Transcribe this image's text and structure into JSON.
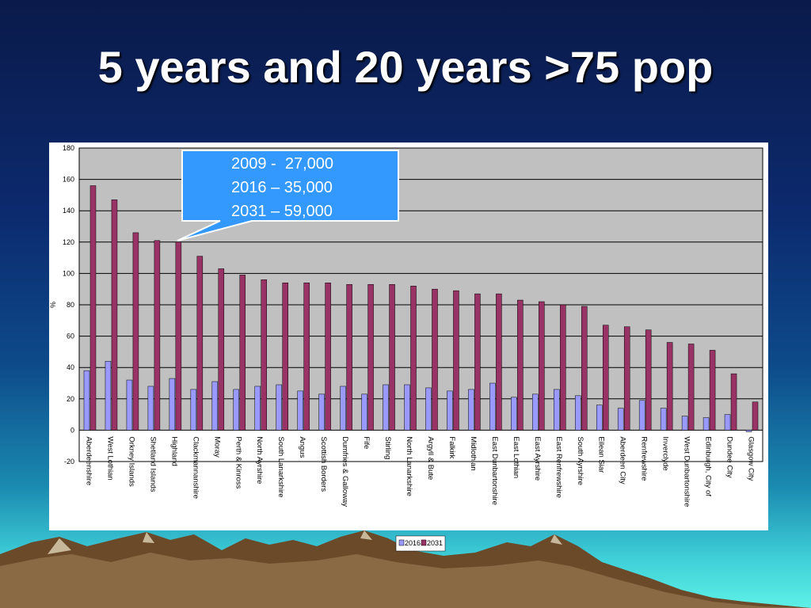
{
  "slide": {
    "title": "5 years and 20 years >75 pop"
  },
  "callout": {
    "lines": [
      "2009 -  27,000",
      "2016 – 35,000",
      "2031 – 59,000"
    ]
  },
  "colors": {
    "series_2016": "#9999ff",
    "series_2031": "#993366",
    "plot_bg": "#c0c0c0",
    "callout_bg": "#3399ff"
  },
  "chart_data": {
    "type": "bar",
    "ylabel": "%",
    "ylim": [
      -20,
      180
    ],
    "yticks": [
      -20,
      0,
      20,
      40,
      60,
      80,
      100,
      120,
      140,
      160,
      180
    ],
    "grid": true,
    "legend_position": "bottom",
    "categories": [
      "Aberdeenshire",
      "West Lothian",
      "Orkney Islands",
      "Shetland Islands",
      "Highland",
      "Clackmannanshire",
      "Moray",
      "Perth & Kinross",
      "North Ayrshire",
      "South Lanarkshire",
      "Angus",
      "Scottish Borders",
      "Dumfries & Galloway",
      "Fife",
      "Stirling",
      "North Lanarkshire",
      "Argyll & Bute",
      "Falkirk",
      "Midlothian",
      "East Dunbartonshire",
      "East Lothian",
      "East Ayrshire",
      "East Renfrewshire",
      "South Ayrshire",
      "Eilean Siar",
      "Aberdeen City",
      "Renfrewshire",
      "Inverclyde",
      "West Dunbartonshire",
      "Edinburgh, City of",
      "Dundee City",
      "Glasgow City"
    ],
    "series": [
      {
        "name": "2016",
        "values": [
          38,
          44,
          32,
          28,
          33,
          26,
          31,
          26,
          28,
          29,
          25,
          23,
          28,
          23,
          29,
          29,
          27,
          25,
          26,
          30,
          21,
          23,
          26,
          22,
          16,
          14,
          19,
          14,
          9,
          8,
          10,
          -1
        ]
      },
      {
        "name": "2031",
        "values": [
          156,
          147,
          126,
          121,
          120,
          111,
          103,
          99,
          96,
          94,
          94,
          94,
          93,
          93,
          93,
          92,
          90,
          89,
          87,
          87,
          83,
          82,
          80,
          79,
          67,
          66,
          64,
          56,
          55,
          51,
          36,
          18
        ]
      }
    ]
  }
}
